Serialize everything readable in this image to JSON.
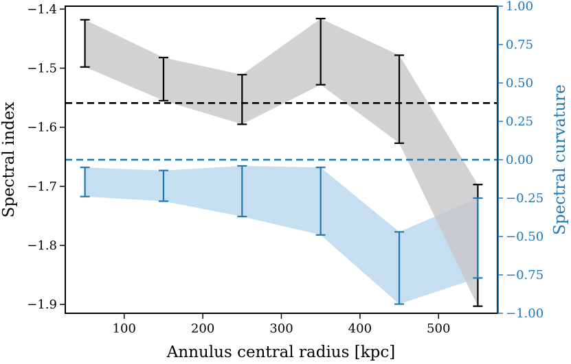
{
  "chart_data": {
    "type": "line",
    "xlabel": "Annulus central radius [kpc]",
    "ylabel_left": "Spectral index",
    "ylabel_right": "Spectral curvature",
    "xlim": [
      25,
      575
    ],
    "ylim_left": [
      -1.915,
      -1.395
    ],
    "ylim_right": [
      -1.0,
      1.0
    ],
    "x_ticks": [
      100,
      200,
      300,
      400,
      500
    ],
    "x_tick_labels": [
      "100",
      "200",
      "300",
      "400",
      "500"
    ],
    "y_ticks_left": [
      -1.4,
      -1.5,
      -1.6,
      -1.7,
      -1.8,
      -1.9
    ],
    "y_tick_labels_left": [
      "−1.4",
      "−1.5",
      "−1.6",
      "−1.7",
      "−1.8",
      "−1.9"
    ],
    "y_ticks_right": [
      1.0,
      0.75,
      0.5,
      0.25,
      0.0,
      -0.25,
      -0.5,
      -0.75,
      -1.0
    ],
    "y_tick_labels_right": [
      "1.00",
      "0.75",
      "0.50",
      "0.25",
      "0.00",
      "−0.25",
      "−0.50",
      "−0.75",
      "−1.00"
    ],
    "series": [
      {
        "name": "Spectral index",
        "axis": "left",
        "color": "#000000",
        "fill_color": "#c8c8c8",
        "x": [
          50,
          150,
          250,
          350,
          450,
          550
        ],
        "lower": [
          -1.498,
          -1.555,
          -1.595,
          -1.528,
          -1.627,
          -1.903
        ],
        "upper": [
          -1.418,
          -1.482,
          -1.511,
          -1.416,
          -1.478,
          -1.697
        ]
      },
      {
        "name": "Spectral curvature",
        "axis": "right",
        "color": "#1f77b4",
        "fill_color": "#c6dff0",
        "x": [
          50,
          150,
          250,
          350,
          450,
          550
        ],
        "lower": [
          -0.24,
          -0.27,
          -0.37,
          -0.49,
          -0.94,
          -0.77
        ],
        "upper": [
          -0.05,
          -0.07,
          -0.04,
          -0.05,
          -0.47,
          -0.25
        ]
      }
    ],
    "reference_lines": [
      {
        "axis": "left",
        "value": -1.559,
        "color": "#000000",
        "style": "dashed"
      },
      {
        "axis": "right",
        "value": 0.0,
        "color": "#1f77b4",
        "style": "dashed"
      }
    ]
  }
}
